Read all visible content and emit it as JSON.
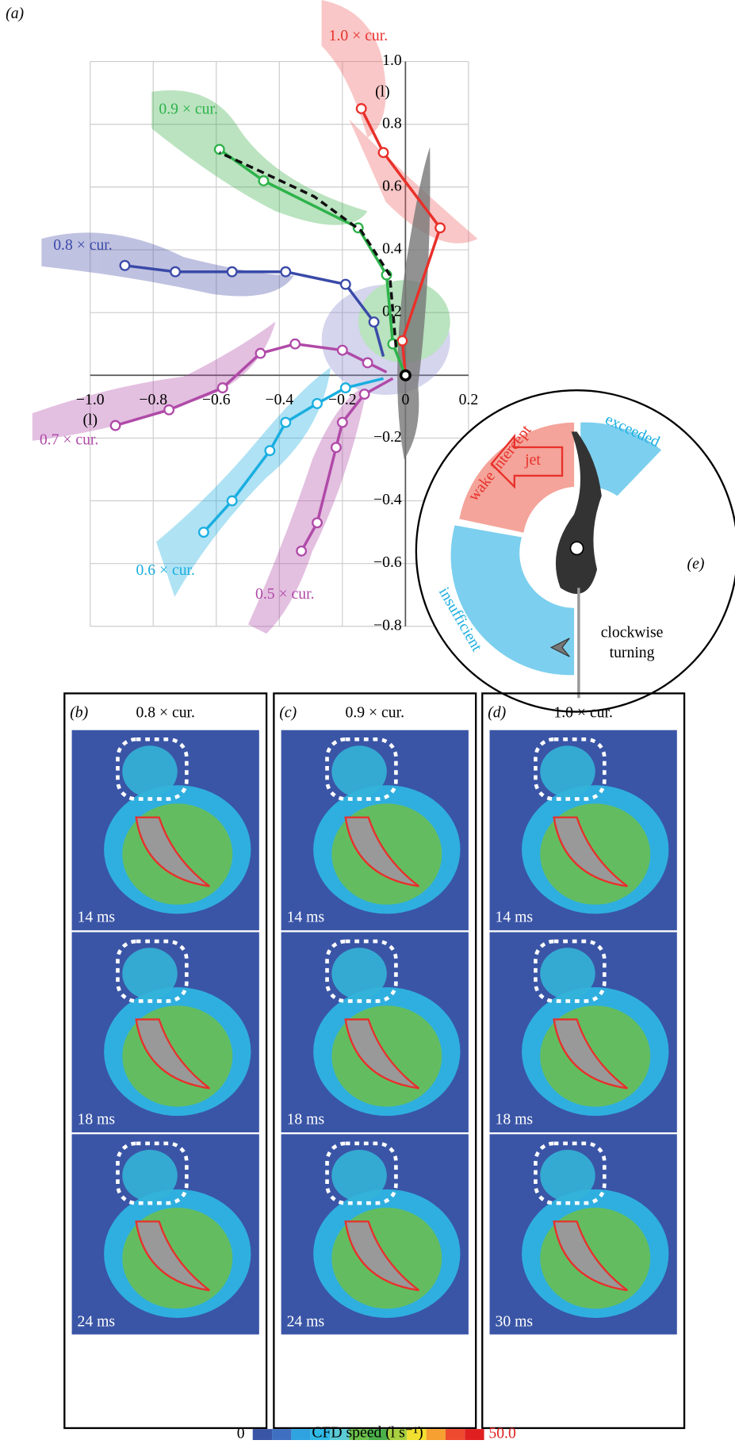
{
  "chart_data": {
    "type": "line",
    "panel_label": "(a)",
    "xlabel": "(l)",
    "ylabel": "(l)",
    "xlim": [
      -1.0,
      0.2
    ],
    "ylim": [
      -0.8,
      1.0
    ],
    "xticks": [
      {
        "value": -1.0,
        "label": "−1.0"
      },
      {
        "value": -0.8,
        "label": "−0.8"
      },
      {
        "value": -0.6,
        "label": "−0.6"
      },
      {
        "value": -0.4,
        "label": "−0.4"
      },
      {
        "value": -0.2,
        "label": "−0.2"
      },
      0,
      {
        "value": 0.2,
        "label": "0.2"
      }
    ],
    "yticks": [
      {
        "value": -0.8,
        "label": "−0.8"
      },
      {
        "value": -0.6,
        "label": "−0.6"
      },
      {
        "value": -0.4,
        "label": "−0.4"
      },
      {
        "value": -0.2,
        "label": "−0.2"
      },
      {
        "value": 0.2,
        "label": "0.2"
      },
      {
        "value": 0.4,
        "label": "0.4"
      },
      {
        "value": 0.6,
        "label": "0.6"
      },
      {
        "value": 0.8,
        "label": "0.8"
      },
      {
        "value": 1.0,
        "label": "1.0"
      }
    ],
    "grid": true,
    "series": [
      {
        "name": "1.0 × cur.",
        "color": "#e8302a",
        "x": [
          0,
          -0.01,
          0.11,
          -0.07,
          -0.14
        ],
        "values": [
          0,
          0.11,
          0.47,
          0.71,
          0.85
        ]
      },
      {
        "name": "0.9 × cur.",
        "color": "#2db34a",
        "x": [
          0,
          -0.04,
          -0.06,
          -0.15,
          -0.45,
          -0.59
        ],
        "values": [
          0,
          0.1,
          0.32,
          0.47,
          0.62,
          0.72
        ]
      },
      {
        "color": "#111111",
        "dash": true,
        "x": [
          -0.03,
          -0.05,
          -0.14,
          -0.29,
          -0.46,
          -0.59
        ],
        "values": [
          0.09,
          0.32,
          0.46,
          0.57,
          0.65,
          0.71
        ]
      },
      {
        "name": "0.8 × cur.",
        "color": "#3a4aa8",
        "x": [
          -0.07,
          -0.1,
          -0.19,
          -0.38,
          -0.55,
          -0.73,
          -0.89
        ],
        "values": [
          0.06,
          0.17,
          0.29,
          0.33,
          0.33,
          0.33,
          0.35
        ]
      },
      {
        "name": "0.7 × cur.",
        "color": "#b04aa8",
        "x": [
          -0.06,
          -0.12,
          -0.2,
          -0.35,
          -0.46,
          -0.58,
          -0.75,
          -0.92
        ],
        "values": [
          0.01,
          0.04,
          0.08,
          0.1,
          0.07,
          -0.04,
          -0.11,
          -0.16
        ]
      },
      {
        "name": "0.6 × cur.",
        "color": "#1aaee0",
        "x": [
          -0.07,
          -0.19,
          -0.28,
          -0.38,
          -0.43,
          -0.55,
          -0.64
        ],
        "values": [
          -0.01,
          -0.04,
          -0.09,
          -0.15,
          -0.24,
          -0.4,
          -0.5
        ]
      },
      {
        "name": "0.5 × cur.",
        "color": "#b04aa8",
        "x": [
          -0.04,
          -0.13,
          -0.2,
          -0.22,
          -0.28,
          -0.33
        ],
        "values": [
          -0.01,
          -0.06,
          -0.15,
          -0.23,
          -0.47,
          -0.56
        ]
      }
    ]
  },
  "inset": {
    "label": "(e)",
    "wake": "wake intercept",
    "exceeded": "exceeded",
    "insufficient": "insufficient",
    "jet": "jet",
    "turning": [
      "clockwise",
      "turning"
    ]
  },
  "panels": [
    {
      "label": "(b)",
      "title": "0.8 × cur.",
      "times": [
        "14 ms",
        "18 ms",
        "24 ms"
      ]
    },
    {
      "label": "(c)",
      "title": "0.9 × cur.",
      "times": [
        "14 ms",
        "18 ms",
        "24 ms"
      ]
    },
    {
      "label": "(d)",
      "title": "1.0 × cur.",
      "times": [
        "14 ms",
        "18 ms",
        "30 ms"
      ]
    }
  ],
  "colorbar": {
    "min": "0",
    "title": "CFD speed (l s⁻¹)",
    "max": "50.0"
  }
}
